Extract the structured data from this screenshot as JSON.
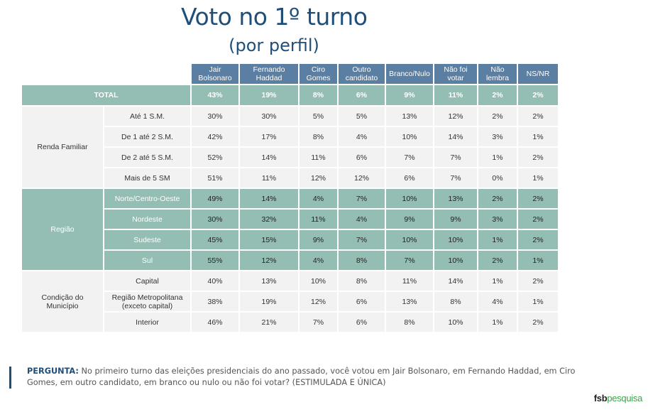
{
  "header": {
    "title": "Voto no 1º turno",
    "subtitle": "(por perfil)"
  },
  "table": {
    "columns": [
      "Jair Bolsonaro",
      "Fernando Haddad",
      "Ciro Gomes",
      "Outro candidato",
      "Branco/Nulo",
      "Não foi votar",
      "Não lembra",
      "NS/NR"
    ],
    "columns_split": [
      [
        "Jair",
        "Bolsonaro"
      ],
      [
        "Fernando",
        "Haddad"
      ],
      [
        "Ciro",
        "Gomes"
      ],
      [
        "Outro",
        "candidato"
      ],
      [
        "Branco/Nulo",
        ""
      ],
      [
        "Não foi",
        "votar"
      ],
      [
        "Não",
        "lembra"
      ],
      [
        "NS/NR",
        ""
      ]
    ],
    "total": {
      "label": "TOTAL",
      "values": [
        "43%",
        "19%",
        "8%",
        "6%",
        "9%",
        "11%",
        "2%",
        "2%"
      ]
    },
    "groups": [
      {
        "label": "Renda Familiar",
        "label_lines": [
          "Renda Familiar",
          ""
        ],
        "rows": [
          {
            "label": "Até 1 S.M.",
            "values": [
              "30%",
              "30%",
              "5%",
              "5%",
              "13%",
              "12%",
              "2%",
              "2%"
            ]
          },
          {
            "label": "De 1 até 2 S.M.",
            "values": [
              "42%",
              "17%",
              "8%",
              "4%",
              "10%",
              "14%",
              "3%",
              "1%"
            ]
          },
          {
            "label": "De 2 até 5 S.M.",
            "values": [
              "52%",
              "14%",
              "11%",
              "6%",
              "7%",
              "7%",
              "1%",
              "2%"
            ]
          },
          {
            "label": "Mais de 5 SM",
            "values": [
              "51%",
              "11%",
              "12%",
              "12%",
              "6%",
              "7%",
              "0%",
              "1%"
            ]
          }
        ]
      },
      {
        "label": "Região",
        "label_lines": [
          "Região",
          ""
        ],
        "rows": [
          {
            "label": "Norte/Centro-Oeste",
            "values": [
              "49%",
              "14%",
              "4%",
              "7%",
              "10%",
              "13%",
              "2%",
              "2%"
            ]
          },
          {
            "label": "Nordeste",
            "values": [
              "30%",
              "32%",
              "11%",
              "4%",
              "9%",
              "9%",
              "3%",
              "2%"
            ]
          },
          {
            "label": "Sudeste",
            "values": [
              "45%",
              "15%",
              "9%",
              "7%",
              "10%",
              "10%",
              "1%",
              "2%"
            ]
          },
          {
            "label": "Sul",
            "values": [
              "55%",
              "12%",
              "4%",
              "8%",
              "7%",
              "10%",
              "2%",
              "1%"
            ]
          }
        ]
      },
      {
        "label": "Condição do Município",
        "label_lines": [
          "Condição do",
          "Município"
        ],
        "rows": [
          {
            "label": "Capital",
            "label_lines": [
              "Capital",
              ""
            ],
            "values": [
              "40%",
              "13%",
              "10%",
              "8%",
              "11%",
              "14%",
              "1%",
              "2%"
            ]
          },
          {
            "label": "Região Metropolitana (exceto capital)",
            "label_lines": [
              "Região Metropolitana",
              "(exceto capital)"
            ],
            "values": [
              "38%",
              "19%",
              "12%",
              "6%",
              "13%",
              "8%",
              "4%",
              "1%"
            ]
          },
          {
            "label": "Interior",
            "label_lines": [
              "Interior",
              ""
            ],
            "values": [
              "46%",
              "21%",
              "7%",
              "6%",
              "8%",
              "10%",
              "1%",
              "2%"
            ]
          }
        ]
      }
    ]
  },
  "question": {
    "label": "PERGUNTA:",
    "text": " No primeiro turno das eleições presidenciais do ano passado, você votou em Jair Bolsonaro, em Fernando Haddad, em Ciro Gomes, em outro candidato, em branco ou nulo ou não foi votar? (ESTIMULADA E ÚNICA)"
  },
  "logo": {
    "part1": "fsb",
    "part2": "pesquisa"
  },
  "colors": {
    "title": "#1f4e79",
    "header_bg": "#5b7fa2",
    "teal_bg": "#94bdb3",
    "light_bg": "#f2f2f2",
    "logo_green": "#3aa34a"
  }
}
